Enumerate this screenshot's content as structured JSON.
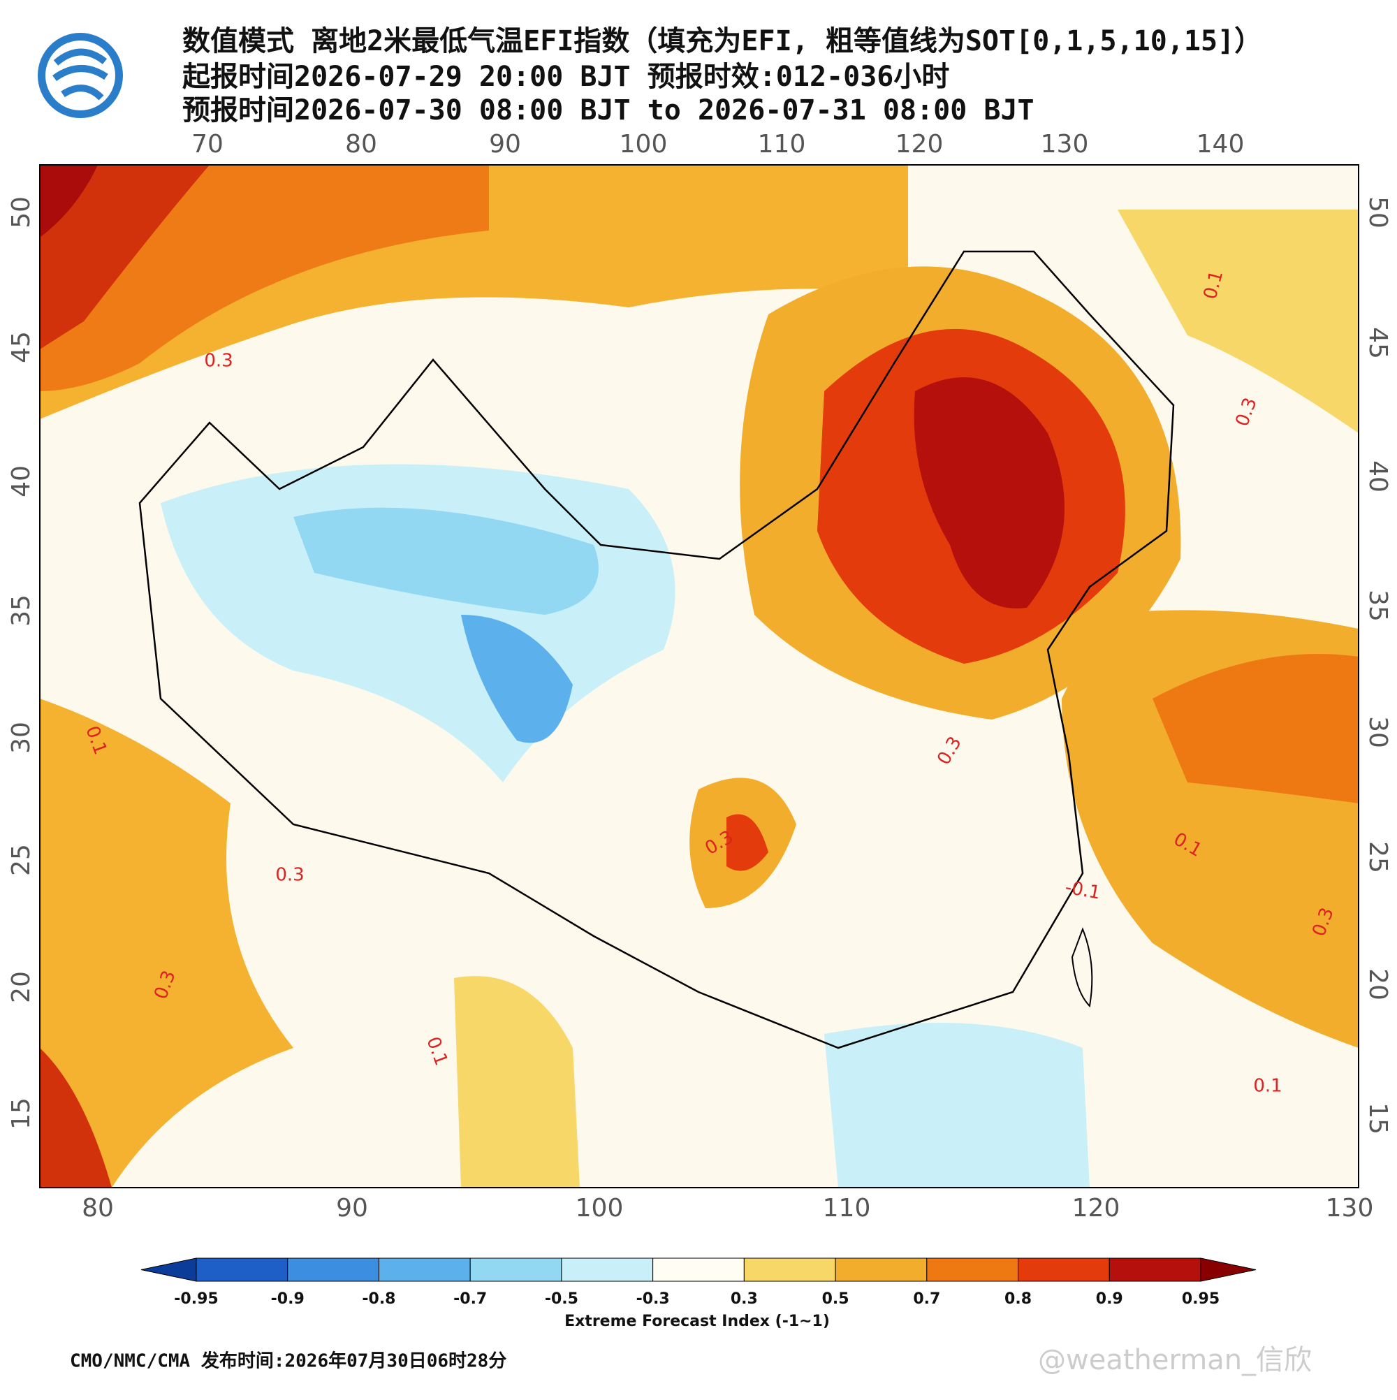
{
  "header": {
    "title_lines": [
      "数值模式 离地2米最低气温EFI指数（填充为EFI, 粗等值线为SOT[0,1,5,10,15]）",
      "起报时间2026-07-29 20:00 BJT 预报时效:012-036小时",
      "预报时间2026-07-30 08:00 BJT to 2026-07-31 08:00 BJT"
    ]
  },
  "map": {
    "top_lon_labels": [
      "70",
      "80",
      "90",
      "100",
      "110",
      "120",
      "130",
      "140"
    ],
    "bottom_lon_labels": [
      "80",
      "90",
      "100",
      "110",
      "120",
      "130"
    ],
    "left_lat_labels": [
      "50",
      "45",
      "40",
      "35",
      "30",
      "25",
      "20",
      "15"
    ],
    "right_lat_labels": [
      "50",
      "45",
      "40",
      "35",
      "30",
      "25",
      "20",
      "15"
    ],
    "contour_labels": [
      "0.3",
      "0.1",
      "0.3",
      "0.3",
      "0.3",
      "0.1",
      "0.3",
      "0.3",
      "0.1",
      "-0.1",
      "0.1",
      "0.3",
      "0.1"
    ]
  },
  "colorbar": {
    "levels": [
      -0.95,
      -0.9,
      -0.8,
      -0.7,
      -0.5,
      -0.3,
      0.3,
      0.5,
      0.7,
      0.8,
      0.9,
      0.95
    ],
    "colors": [
      "#0b3c9a",
      "#1d5fc6",
      "#3b8ee0",
      "#5cb0ec",
      "#92d8f3",
      "#c9f0f8",
      "#fffdf4",
      "#f6d768",
      "#f2ad2d",
      "#ee7913",
      "#e33b0c",
      "#b5100b",
      "#880000"
    ],
    "label": "Extreme Forecast Index (-1~1)"
  },
  "footer": {
    "source": "CMO/NMC/CMA 发布时间:2026年07月30日06时28分",
    "watermark": "@weatherman_信欣"
  }
}
